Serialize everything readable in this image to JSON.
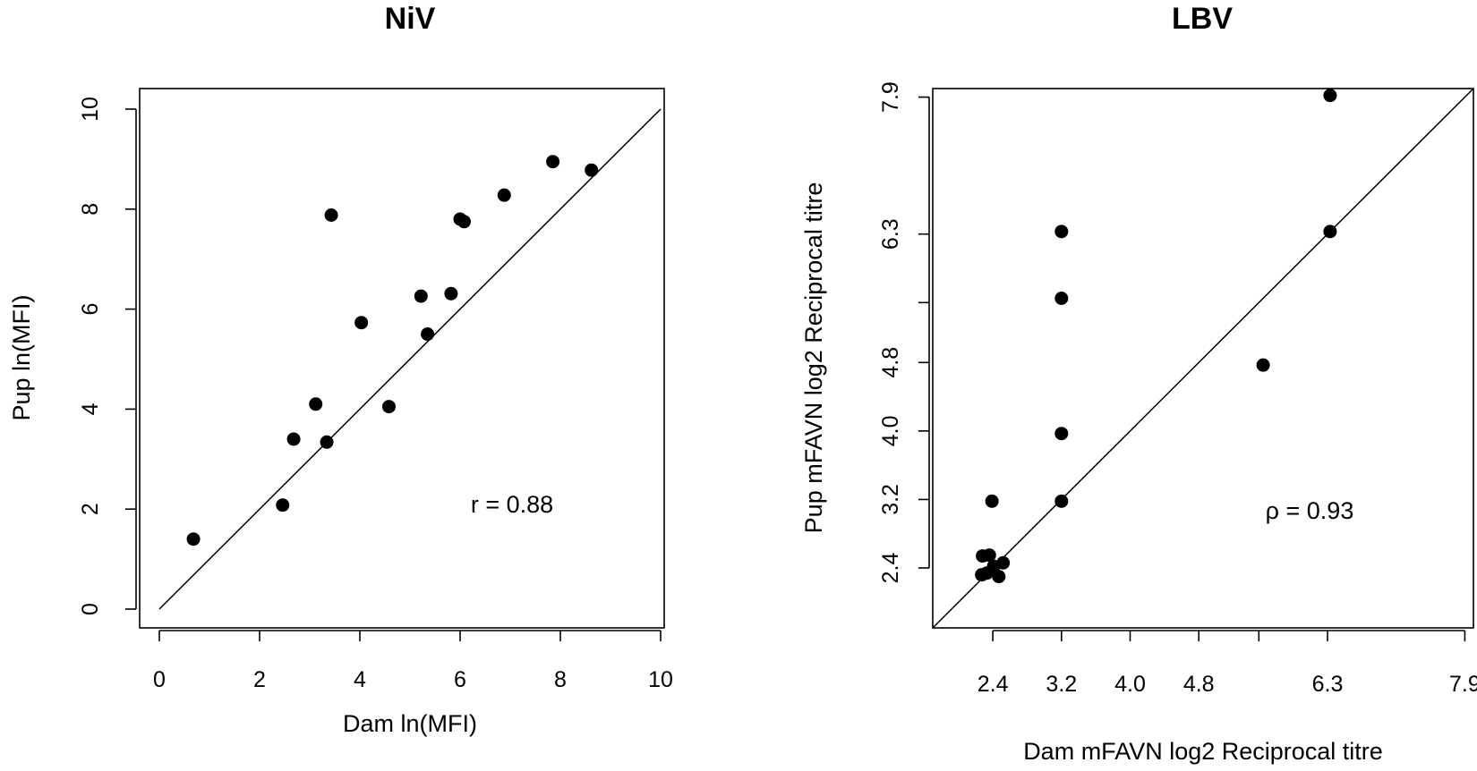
{
  "chart_data": [
    {
      "type": "scatter",
      "title": "NiV",
      "xlabel": "Dam ln(MFI)",
      "ylabel": "Pup ln(MFI)",
      "xlim": [
        0,
        10
      ],
      "ylim": [
        0,
        10
      ],
      "xticks": [
        0,
        2,
        4,
        6,
        8,
        10
      ],
      "yticks": [
        0,
        2,
        4,
        6,
        8,
        10
      ],
      "xtick_labels": [
        "0",
        "2",
        "4",
        "6",
        "8",
        "10"
      ],
      "ytick_labels": [
        "0",
        "2",
        "4",
        "6",
        "8",
        "10"
      ],
      "reference_line": "y = x",
      "annotation": "r = 0.88",
      "points": [
        {
          "x": 0.68,
          "y": 1.4
        },
        {
          "x": 2.46,
          "y": 2.08
        },
        {
          "x": 2.68,
          "y": 3.4
        },
        {
          "x": 3.12,
          "y": 4.1
        },
        {
          "x": 3.34,
          "y": 3.34
        },
        {
          "x": 3.43,
          "y": 7.88
        },
        {
          "x": 4.03,
          "y": 5.73
        },
        {
          "x": 4.58,
          "y": 4.05
        },
        {
          "x": 5.22,
          "y": 6.26
        },
        {
          "x": 5.35,
          "y": 5.5
        },
        {
          "x": 5.82,
          "y": 6.31
        },
        {
          "x": 6.0,
          "y": 7.8
        },
        {
          "x": 6.08,
          "y": 7.75
        },
        {
          "x": 6.88,
          "y": 8.28
        },
        {
          "x": 7.85,
          "y": 8.95
        },
        {
          "x": 8.62,
          "y": 8.78
        }
      ]
    },
    {
      "type": "scatter",
      "title": "LBV",
      "xlabel": "Dam mFAVN log2 Reciprocal titre",
      "ylabel": "Pup mFAVN log2 Reciprocal titre",
      "xlim": [
        1.7,
        8.0
      ],
      "ylim": [
        1.7,
        8.0
      ],
      "xticks": [
        2.4,
        3.2,
        4.0,
        4.8,
        5.5,
        6.3,
        7.9
      ],
      "yticks": [
        2.4,
        3.2,
        4.0,
        4.8,
        5.5,
        6.3,
        7.9
      ],
      "xtick_labels": [
        "2.4",
        "3.2",
        "4.0",
        "4.8",
        "",
        "6.3",
        "7.9"
      ],
      "ytick_labels": [
        "2.4",
        "3.2",
        "4.0",
        "4.8",
        "",
        "6.3",
        "7.9"
      ],
      "reference_line": "y = x",
      "annotation": "ρ = 0.93",
      "points": [
        {
          "x": 2.28,
          "y": 2.54
        },
        {
          "x": 2.36,
          "y": 2.55
        },
        {
          "x": 2.27,
          "y": 2.32
        },
        {
          "x": 2.33,
          "y": 2.34
        },
        {
          "x": 2.41,
          "y": 2.42
        },
        {
          "x": 2.47,
          "y": 2.3
        },
        {
          "x": 2.52,
          "y": 2.46
        },
        {
          "x": 2.39,
          "y": 3.18
        },
        {
          "x": 3.2,
          "y": 3.18
        },
        {
          "x": 3.2,
          "y": 3.97
        },
        {
          "x": 3.2,
          "y": 5.55
        },
        {
          "x": 3.2,
          "y": 6.33
        },
        {
          "x": 5.55,
          "y": 4.77
        },
        {
          "x": 6.33,
          "y": 6.33
        },
        {
          "x": 6.33,
          "y": 7.92
        }
      ]
    }
  ]
}
